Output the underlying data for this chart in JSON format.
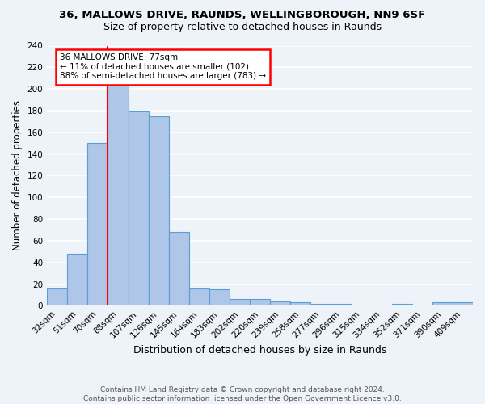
{
  "title1": "36, MALLOWS DRIVE, RAUNDS, WELLINGBOROUGH, NN9 6SF",
  "title2": "Size of property relative to detached houses in Raunds",
  "xlabel": "Distribution of detached houses by size in Raunds",
  "ylabel": "Number of detached properties",
  "categories": [
    "32sqm",
    "51sqm",
    "70sqm",
    "88sqm",
    "107sqm",
    "126sqm",
    "145sqm",
    "164sqm",
    "183sqm",
    "202sqm",
    "220sqm",
    "239sqm",
    "258sqm",
    "277sqm",
    "296sqm",
    "315sqm",
    "334sqm",
    "352sqm",
    "371sqm",
    "390sqm",
    "409sqm"
  ],
  "values": [
    16,
    48,
    150,
    205,
    180,
    175,
    68,
    16,
    15,
    6,
    6,
    4,
    3,
    2,
    2,
    0,
    0,
    2,
    0,
    3,
    3
  ],
  "bar_color": "#aec6e8",
  "bar_edge_color": "#5a9fd4",
  "red_line_index": 2,
  "annotation_title": "36 MALLOWS DRIVE: 77sqm",
  "annotation_line1": "← 11% of detached houses are smaller (102)",
  "annotation_line2": "88% of semi-detached houses are larger (783) →",
  "annotation_box_color": "white",
  "annotation_box_edge_color": "red",
  "footer1": "Contains HM Land Registry data © Crown copyright and database right 2024.",
  "footer2": "Contains public sector information licensed under the Open Government Licence v3.0.",
  "ylim": [
    0,
    240
  ],
  "yticks": [
    0,
    20,
    40,
    60,
    80,
    100,
    120,
    140,
    160,
    180,
    200,
    220,
    240
  ],
  "background_color": "#eef2f9",
  "grid_color": "white",
  "title1_fontsize": 9.5,
  "title2_fontsize": 9.0,
  "ylabel_fontsize": 8.5,
  "xlabel_fontsize": 9.0,
  "tick_fontsize": 7.5,
  "footer_fontsize": 6.5
}
